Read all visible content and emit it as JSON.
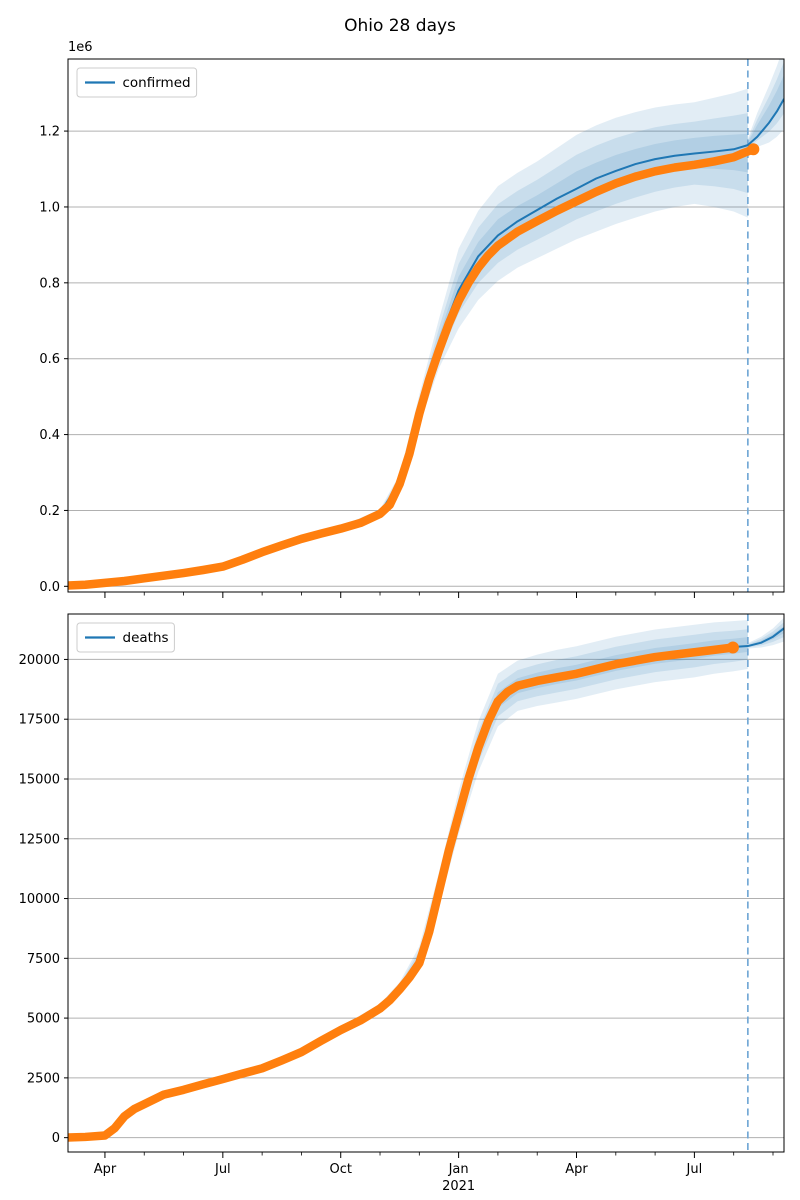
{
  "figure": {
    "title": "Ohio 28 days",
    "background": "#ffffff"
  },
  "colors": {
    "observed": "#ff7f0e",
    "fit_line": "#1f77b4",
    "band": "#1f77b4",
    "band_opacity": 0.13,
    "vline": "#74a9d6",
    "grid": "#b0b0b0",
    "spine": "#000000"
  },
  "chart_data": [
    {
      "type": "line",
      "legend": "confirmed",
      "offset_text": "1e6",
      "x_unit": "months since 2020-03-01",
      "xlim": [
        0.06,
        18.28
      ],
      "ylim": [
        -15000,
        1390000
      ],
      "grid": "horizontal",
      "legend_position": "upper-left",
      "show_x_tick_labels": false,
      "yticks": [
        {
          "v": 0,
          "label": "0.0"
        },
        {
          "v": 200000,
          "label": "0.2"
        },
        {
          "v": 400000,
          "label": "0.4"
        },
        {
          "v": 600000,
          "label": "0.6"
        },
        {
          "v": 800000,
          "label": "0.8"
        },
        {
          "v": 1000000,
          "label": "1.0"
        },
        {
          "v": 1200000,
          "label": "1.2"
        }
      ],
      "xticks": [
        {
          "m": 1,
          "label": "Apr"
        },
        {
          "m": 4,
          "label": "Jul"
        },
        {
          "m": 7,
          "label": "Oct"
        },
        {
          "m": 10,
          "label": "Jan"
        },
        {
          "m": 13,
          "label": "Apr"
        },
        {
          "m": 16,
          "label": "Jul"
        }
      ],
      "xticks_minor": [
        2,
        3,
        5,
        6,
        8,
        9,
        11,
        12,
        14,
        15,
        17,
        18
      ],
      "vline_m": 17.36,
      "observed": [
        [
          0.06,
          2000
        ],
        [
          0.5,
          4000
        ],
        [
          1,
          9000
        ],
        [
          1.5,
          14000
        ],
        [
          2,
          21000
        ],
        [
          2.5,
          28000
        ],
        [
          3,
          35000
        ],
        [
          3.5,
          43000
        ],
        [
          4,
          52000
        ],
        [
          4.5,
          70000
        ],
        [
          5,
          90000
        ],
        [
          5.5,
          108000
        ],
        [
          6,
          125000
        ],
        [
          6.5,
          139000
        ],
        [
          7,
          152000
        ],
        [
          7.5,
          167000
        ],
        [
          8,
          191000
        ],
        [
          8.25,
          215000
        ],
        [
          8.5,
          270000
        ],
        [
          8.75,
          350000
        ],
        [
          9,
          455000
        ],
        [
          9.25,
          545000
        ],
        [
          9.5,
          622000
        ],
        [
          9.75,
          692000
        ],
        [
          10,
          752000
        ],
        [
          10.25,
          800000
        ],
        [
          10.5,
          840000
        ],
        [
          10.75,
          872000
        ],
        [
          11,
          898000
        ],
        [
          11.5,
          935000
        ],
        [
          12,
          963000
        ],
        [
          12.5,
          990000
        ],
        [
          13,
          1015000
        ],
        [
          13.5,
          1040000
        ],
        [
          14,
          1062000
        ],
        [
          14.5,
          1080000
        ],
        [
          15,
          1094000
        ],
        [
          15.5,
          1104000
        ],
        [
          16,
          1111000
        ],
        [
          16.5,
          1120000
        ],
        [
          17,
          1131000
        ],
        [
          17.25,
          1142000
        ],
        [
          17.5,
          1152000
        ]
      ],
      "fit": [
        [
          0.06,
          2000
        ],
        [
          1,
          9000
        ],
        [
          2,
          21000
        ],
        [
          3,
          35000
        ],
        [
          4,
          52000
        ],
        [
          5,
          90000
        ],
        [
          6,
          124000
        ],
        [
          7,
          152000
        ],
        [
          8,
          193000
        ],
        [
          8.5,
          275000
        ],
        [
          9,
          465000
        ],
        [
          9.5,
          645000
        ],
        [
          10,
          780000
        ],
        [
          10.5,
          870000
        ],
        [
          11,
          925000
        ],
        [
          11.5,
          962000
        ],
        [
          12,
          992000
        ],
        [
          12.5,
          1022000
        ],
        [
          13,
          1048000
        ],
        [
          13.5,
          1075000
        ],
        [
          14,
          1095000
        ],
        [
          14.5,
          1113000
        ],
        [
          15,
          1126000
        ],
        [
          15.5,
          1135000
        ],
        [
          16,
          1141000
        ],
        [
          16.5,
          1146000
        ],
        [
          17,
          1152000
        ],
        [
          17.36,
          1163000
        ],
        [
          17.6,
          1185000
        ],
        [
          17.9,
          1222000
        ],
        [
          18.1,
          1252000
        ],
        [
          18.28,
          1285000
        ]
      ],
      "band_outer": [
        [
          1,
          7000,
          11000
        ],
        [
          2,
          19000,
          24000
        ],
        [
          3,
          32000,
          38000
        ],
        [
          4,
          49000,
          56000
        ],
        [
          5,
          86000,
          94000
        ],
        [
          6,
          120000,
          129000
        ],
        [
          7,
          147000,
          158000
        ],
        [
          8,
          185000,
          203000
        ],
        [
          8.5,
          258000,
          295000
        ],
        [
          9,
          425000,
          505000
        ],
        [
          9.5,
          575000,
          705000
        ],
        [
          10,
          680000,
          890000
        ],
        [
          10.5,
          755000,
          990000
        ],
        [
          11,
          805000,
          1055000
        ],
        [
          11.5,
          840000,
          1090000
        ],
        [
          12,
          865000,
          1120000
        ],
        [
          12.5,
          890000,
          1155000
        ],
        [
          13,
          915000,
          1190000
        ],
        [
          13.5,
          935000,
          1215000
        ],
        [
          14,
          955000,
          1235000
        ],
        [
          14.5,
          972000,
          1250000
        ],
        [
          15,
          988000,
          1262000
        ],
        [
          15.5,
          1000000,
          1270000
        ],
        [
          16,
          1008000,
          1276000
        ],
        [
          16.5,
          1000000,
          1288000
        ],
        [
          17,
          988000,
          1300000
        ],
        [
          17.36,
          972000,
          1312000
        ]
      ],
      "forecast_fan": [
        [
          17.36,
          1150000,
          1180000
        ],
        [
          17.6,
          1158000,
          1248000
        ],
        [
          17.9,
          1170000,
          1320000
        ],
        [
          18.1,
          1185000,
          1372000
        ],
        [
          18.28,
          1205000,
          1425000
        ]
      ]
    },
    {
      "type": "line",
      "legend": "deaths",
      "offset_text": "",
      "x_unit": "months since 2020-03-01",
      "xlim": [
        0.06,
        18.28
      ],
      "ylim": [
        -600,
        21900
      ],
      "grid": "horizontal",
      "legend_position": "upper-left",
      "show_x_tick_labels": true,
      "yticks": [
        {
          "v": 0,
          "label": "0"
        },
        {
          "v": 2500,
          "label": "2500"
        },
        {
          "v": 5000,
          "label": "5000"
        },
        {
          "v": 7500,
          "label": "7500"
        },
        {
          "v": 10000,
          "label": "10000"
        },
        {
          "v": 12500,
          "label": "12500"
        },
        {
          "v": 15000,
          "label": "15000"
        },
        {
          "v": 17500,
          "label": "17500"
        },
        {
          "v": 20000,
          "label": "20000"
        }
      ],
      "xticks": [
        {
          "m": 1,
          "label": "Apr"
        },
        {
          "m": 4,
          "label": "Jul"
        },
        {
          "m": 7,
          "label": "Oct"
        },
        {
          "m": 10,
          "label": "Jan"
        },
        {
          "m": 13,
          "label": "Apr"
        },
        {
          "m": 16,
          "label": "Jul"
        }
      ],
      "xticks_minor": [
        2,
        3,
        5,
        6,
        8,
        9,
        11,
        12,
        14,
        15,
        17,
        18
      ],
      "year_label": {
        "m": 10,
        "label": "2021"
      },
      "vline_m": 17.36,
      "observed": [
        [
          0.06,
          5
        ],
        [
          0.5,
          30
        ],
        [
          1,
          90
        ],
        [
          1.25,
          400
        ],
        [
          1.5,
          900
        ],
        [
          1.75,
          1200
        ],
        [
          2,
          1400
        ],
        [
          2.5,
          1800
        ],
        [
          3,
          2000
        ],
        [
          3.5,
          2230
        ],
        [
          4,
          2450
        ],
        [
          4.5,
          2680
        ],
        [
          5,
          2900
        ],
        [
          5.5,
          3230
        ],
        [
          6,
          3580
        ],
        [
          6.5,
          4050
        ],
        [
          7,
          4500
        ],
        [
          7.5,
          4900
        ],
        [
          8,
          5400
        ],
        [
          8.25,
          5750
        ],
        [
          8.5,
          6200
        ],
        [
          8.75,
          6700
        ],
        [
          9,
          7300
        ],
        [
          9.25,
          8600
        ],
        [
          9.5,
          10300
        ],
        [
          9.75,
          12000
        ],
        [
          10,
          13500
        ],
        [
          10.25,
          15000
        ],
        [
          10.5,
          16300
        ],
        [
          10.75,
          17400
        ],
        [
          11,
          18250
        ],
        [
          11.25,
          18650
        ],
        [
          11.5,
          18900
        ],
        [
          12,
          19100
        ],
        [
          12.5,
          19250
        ],
        [
          13,
          19400
        ],
        [
          13.5,
          19600
        ],
        [
          14,
          19800
        ],
        [
          14.5,
          19950
        ],
        [
          15,
          20100
        ],
        [
          15.5,
          20200
        ],
        [
          16,
          20300
        ],
        [
          16.5,
          20400
        ],
        [
          16.98,
          20500
        ]
      ],
      "fit": [
        [
          0.06,
          5
        ],
        [
          1,
          90
        ],
        [
          1.5,
          900
        ],
        [
          2,
          1400
        ],
        [
          3,
          2000
        ],
        [
          4,
          2450
        ],
        [
          5,
          2900
        ],
        [
          6,
          3580
        ],
        [
          7,
          4520
        ],
        [
          8,
          5450
        ],
        [
          8.5,
          6300
        ],
        [
          9,
          7500
        ],
        [
          9.5,
          10400
        ],
        [
          10,
          13600
        ],
        [
          10.5,
          16400
        ],
        [
          11,
          18300
        ],
        [
          11.5,
          18950
        ],
        [
          12,
          19150
        ],
        [
          12.5,
          19300
        ],
        [
          13,
          19450
        ],
        [
          13.5,
          19650
        ],
        [
          14,
          19850
        ],
        [
          14.5,
          20000
        ],
        [
          15,
          20150
        ],
        [
          15.5,
          20250
        ],
        [
          16,
          20350
        ],
        [
          16.5,
          20450
        ],
        [
          16.98,
          20520
        ],
        [
          17.36,
          20560
        ],
        [
          17.7,
          20700
        ],
        [
          18,
          20950
        ],
        [
          18.28,
          21300
        ]
      ],
      "band_outer": [
        [
          1,
          60,
          120
        ],
        [
          1.5,
          830,
          980
        ],
        [
          2,
          1330,
          1480
        ],
        [
          3,
          1950,
          2080
        ],
        [
          4,
          2380,
          2520
        ],
        [
          5,
          2830,
          2980
        ],
        [
          6,
          3500,
          3680
        ],
        [
          7,
          4380,
          4650
        ],
        [
          8,
          5250,
          5600
        ],
        [
          8.5,
          6000,
          6500
        ],
        [
          9,
          7000,
          8000
        ],
        [
          9.5,
          9700,
          11100
        ],
        [
          10,
          12700,
          14500
        ],
        [
          10.5,
          15300,
          17400
        ],
        [
          11,
          17200,
          19400
        ],
        [
          11.5,
          17850,
          19950
        ],
        [
          12,
          18050,
          20200
        ],
        [
          12.5,
          18200,
          20400
        ],
        [
          13,
          18350,
          20550
        ],
        [
          13.5,
          18550,
          20750
        ],
        [
          14,
          18750,
          20950
        ],
        [
          14.5,
          18900,
          21100
        ],
        [
          15,
          19050,
          21250
        ],
        [
          15.5,
          19150,
          21350
        ],
        [
          16,
          19250,
          21450
        ],
        [
          16.5,
          19400,
          21550
        ],
        [
          16.98,
          19500,
          21600
        ],
        [
          17.36,
          19600,
          21650
        ]
      ],
      "forecast_fan": [
        [
          17.36,
          20450,
          20680
        ],
        [
          17.7,
          20500,
          20950
        ],
        [
          18,
          20600,
          21300
        ],
        [
          18.28,
          20750,
          21750
        ]
      ]
    }
  ]
}
